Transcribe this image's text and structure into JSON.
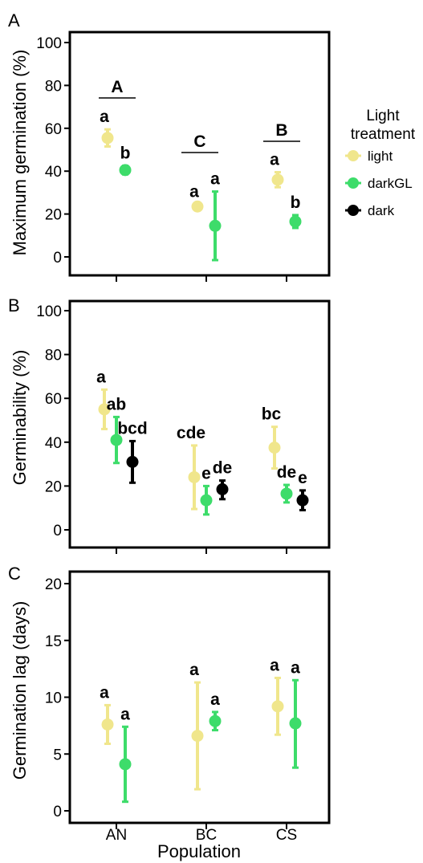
{
  "colors": {
    "light": "#f0e68c",
    "darkGL": "#3ddc6a",
    "dark": "#000000"
  },
  "legend": {
    "title": [
      "Light",
      "treatment"
    ],
    "items": [
      {
        "key": "light",
        "label": "light"
      },
      {
        "key": "darkGL",
        "label": "darkGL"
      },
      {
        "key": "dark",
        "label": "dark"
      }
    ],
    "placement": "right"
  },
  "x_title": "Population",
  "chart_data": [
    {
      "type": "scatter",
      "panel": "A",
      "ylabel": "Maximum germination (%)",
      "ylim": [
        0,
        100
      ],
      "yticks": [
        0,
        20,
        40,
        60,
        80,
        100
      ],
      "categories": [
        "AN",
        "BC",
        "CS"
      ],
      "series": [
        {
          "key": "light",
          "values": [
            55.5,
            23.5,
            36
          ],
          "err_low": [
            51.5,
            22.5,
            32.5
          ],
          "err_high": [
            59.5,
            24.5,
            39.5
          ],
          "letters": [
            "a",
            "a",
            "a"
          ]
        },
        {
          "key": "darkGL",
          "values": [
            40.5,
            14.5,
            16.5
          ],
          "err_low": [
            38.5,
            -1.5,
            13.5
          ],
          "err_high": [
            42.5,
            30.5,
            19.5
          ],
          "letters": [
            "b",
            "a",
            "b"
          ]
        }
      ],
      "group_letters": [
        "A",
        "C",
        "B"
      ]
    },
    {
      "type": "scatter",
      "panel": "B",
      "ylabel": "Germinability (%)",
      "ylim": [
        0,
        100
      ],
      "yticks": [
        0,
        20,
        40,
        60,
        80,
        100
      ],
      "categories": [
        "AN",
        "BC",
        "CS"
      ],
      "series": [
        {
          "key": "light",
          "values": [
            55,
            24,
            37.5
          ],
          "err_low": [
            46,
            9.5,
            28
          ],
          "err_high": [
            64,
            38.5,
            47
          ],
          "letters": [
            "a",
            "cde",
            "bc"
          ]
        },
        {
          "key": "darkGL",
          "values": [
            41,
            13.5,
            16.5
          ],
          "err_low": [
            30.5,
            7,
            12.5
          ],
          "err_high": [
            51.5,
            20,
            20.5
          ],
          "letters": [
            "ab",
            "e",
            "de"
          ]
        },
        {
          "key": "dark",
          "values": [
            31,
            18.5,
            13.5
          ],
          "err_low": [
            21.5,
            14,
            9
          ],
          "err_high": [
            40.5,
            22.5,
            18
          ],
          "letters": [
            "bcd",
            "de",
            "e"
          ]
        }
      ]
    },
    {
      "type": "scatter",
      "panel": "C",
      "ylabel": "Germination lag (days)",
      "ylim": [
        0,
        20
      ],
      "yticks": [
        0,
        5,
        10,
        15,
        20
      ],
      "categories": [
        "AN",
        "BC",
        "CS"
      ],
      "series": [
        {
          "key": "light",
          "values": [
            7.6,
            6.6,
            9.2
          ],
          "err_low": [
            5.9,
            1.9,
            6.7
          ],
          "err_high": [
            9.3,
            11.3,
            11.7
          ],
          "letters": [
            "a",
            "a",
            "a"
          ]
        },
        {
          "key": "darkGL",
          "values": [
            4.1,
            7.9,
            7.7
          ],
          "err_low": [
            0.8,
            7.1,
            3.8
          ],
          "err_high": [
            7.4,
            8.7,
            11.5
          ],
          "letters": [
            "a",
            "a",
            "a"
          ]
        }
      ]
    }
  ]
}
